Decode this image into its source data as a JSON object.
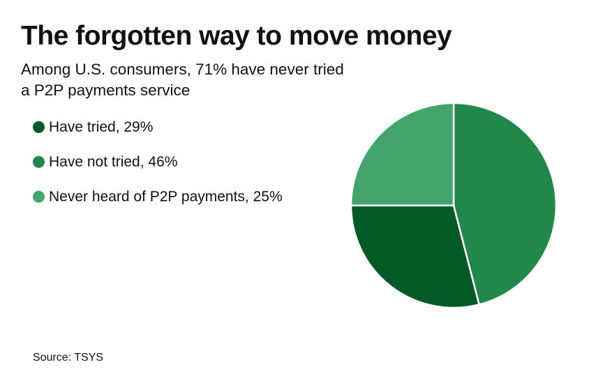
{
  "title": "The forgotten way to move money",
  "subtitle": "Among U.S. consumers, 71% have never tried a P2P payments service",
  "legend": [
    {
      "label": "Have tried, 29%",
      "color": "#035a27"
    },
    {
      "label": "Have not tried, 46%",
      "color": "#22874b"
    },
    {
      "label": "Never heard of P2P payments, 25%",
      "color": "#43a56c"
    }
  ],
  "source": "Source: TSYS",
  "chart_data": {
    "type": "pie",
    "title": "The forgotten way to move money",
    "subtitle": "Among U.S. consumers, 71% have never tried a P2P payments service",
    "categories": [
      "Have tried",
      "Have not tried",
      "Never heard of P2P payments"
    ],
    "values": [
      29,
      46,
      25
    ],
    "colors": [
      "#035a27",
      "#22874b",
      "#43a56c"
    ],
    "unit": "%",
    "legend_position": "left",
    "start_angle": "12 o'clock",
    "slice_order_clockwise": [
      "Have not tried",
      "Have tried",
      "Never heard of P2P payments"
    ],
    "source": "TSYS"
  }
}
